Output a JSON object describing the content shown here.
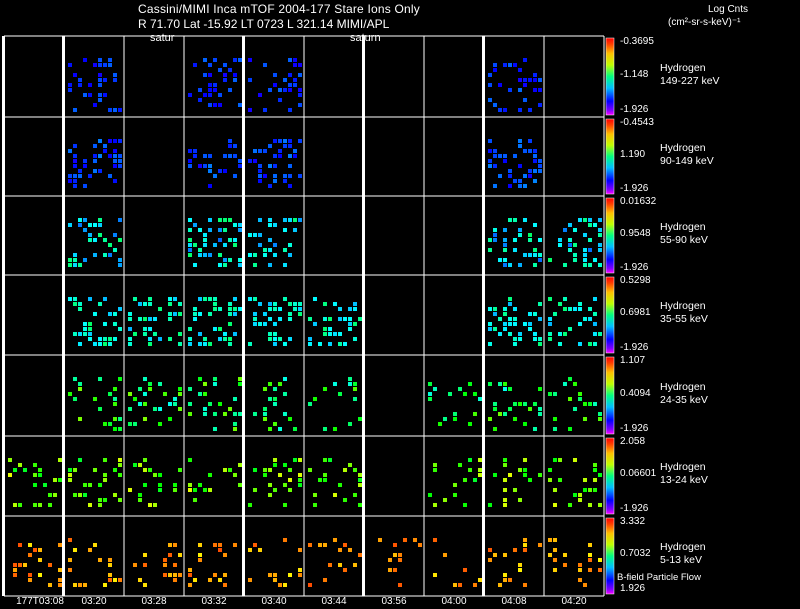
{
  "header": {
    "title": "Cassini/MIMI Inca mTOF  2004-177    Stare    Ions Only",
    "subtitle": "R          71.70 Lat -15.92 LT 0723 L          321.14   MIMI/APL",
    "planet_label_1": "satur",
    "planet_label_2": "saturn",
    "units_title": "Log Cnts",
    "units_sub": "(cm²-sr-s-keV)⁻¹",
    "footer_note": "B-field Particle Flow"
  },
  "chart_data": {
    "type": "heatmap",
    "title": "Cassini/MIMI Inca mTOF  2004-177    Stare    Ions Only",
    "x_ticks": [
      "177T03:08",
      "03:20",
      "03:28",
      "03:32",
      "03:40",
      "03:44",
      "03:56",
      "04:00",
      "04:08",
      "04:20"
    ],
    "rows": [
      {
        "species": "Hydrogen",
        "energy": "149-227 keV",
        "cb_max": "-0.3695",
        "cb_mid": "-1.148",
        "cb_min": "-1.926",
        "hue_min": 0.68,
        "hue_max": 0.6,
        "density": 0.2,
        "panels": [
          false,
          true,
          false,
          true,
          true,
          false,
          false,
          false,
          true,
          false
        ]
      },
      {
        "species": "Hydrogen",
        "energy": "90-149 keV",
        "cb_max": "-0.4543",
        "cb_mid": "1.190",
        "cb_min": "-1.926",
        "hue_min": 0.68,
        "hue_max": 0.58,
        "density": 0.32,
        "panels": [
          false,
          true,
          false,
          true,
          true,
          false,
          false,
          false,
          true,
          false
        ]
      },
      {
        "species": "Hydrogen",
        "energy": "55-90 keV",
        "cb_max": "0.01632",
        "cb_mid": "0.9548",
        "cb_min": "-1.926",
        "hue_min": 0.6,
        "hue_max": 0.4,
        "density": 0.3,
        "panels": [
          false,
          true,
          false,
          true,
          true,
          false,
          false,
          false,
          true,
          true
        ]
      },
      {
        "species": "Hydrogen",
        "energy": "35-55 keV",
        "cb_max": "0.5298",
        "cb_mid": "0.6981",
        "cb_min": "-1.926",
        "hue_min": 0.55,
        "hue_max": 0.4,
        "density": 0.3,
        "panels": [
          false,
          true,
          true,
          true,
          true,
          true,
          false,
          false,
          true,
          true
        ]
      },
      {
        "species": "Hydrogen",
        "energy": "24-35 keV",
        "cb_max": "1.107",
        "cb_mid": "0.4094",
        "cb_min": "-1.926",
        "hue_min": 0.5,
        "hue_max": 0.25,
        "density": 0.16,
        "panels": [
          false,
          true,
          true,
          true,
          true,
          true,
          false,
          true,
          true,
          true
        ]
      },
      {
        "species": "Hydrogen",
        "energy": "13-24 keV",
        "cb_max": "2.058",
        "cb_mid": "0.06601",
        "cb_min": "-1.926",
        "hue_min": 0.36,
        "hue_max": 0.18,
        "density": 0.18,
        "panels": [
          true,
          true,
          true,
          true,
          true,
          true,
          false,
          true,
          true,
          true
        ]
      },
      {
        "species": "Hydrogen",
        "energy": "5-13 keV",
        "cb_max": "3.332",
        "cb_mid": "0.7032",
        "cb_min": "1.926",
        "hue_min": 0.16,
        "hue_max": 0.05,
        "density": 0.16,
        "panels": [
          true,
          true,
          true,
          true,
          true,
          true,
          true,
          true,
          true,
          true
        ]
      }
    ],
    "colorbar": {
      "scale": "rainbow",
      "low_color": "#0000ff",
      "high_color": "#ff0000"
    },
    "grid_color": "#ffffff",
    "separator_color": "#ffffff"
  }
}
